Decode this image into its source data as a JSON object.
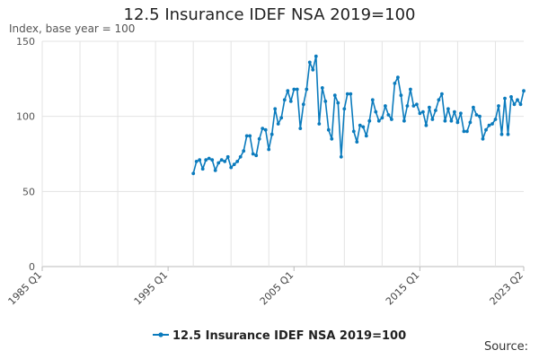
{
  "chart_data": {
    "type": "line",
    "title": "12.5 Insurance IDEF NSA 2019=100",
    "ylabel": "Index, base year = 100",
    "xlabel": "",
    "ylim": [
      0,
      150
    ],
    "y_ticks": [
      0,
      50,
      100,
      150
    ],
    "x_range": [
      1985.0,
      2023.25
    ],
    "x_ticks": [
      {
        "value": 1985.0,
        "label": "1985 Q1"
      },
      {
        "value": 1995.0,
        "label": "1995 Q1"
      },
      {
        "value": 2005.0,
        "label": "2005 Q1"
      },
      {
        "value": 2015.0,
        "label": "2015 Q1"
      },
      {
        "value": 2023.25,
        "label": "2023 Q2"
      }
    ],
    "x_gridlines": [
      1985.0,
      1988.0,
      1991.0,
      1994.0,
      1997.0,
      2000.0,
      2003.0,
      2006.0,
      2009.0,
      2012.0,
      2015.0,
      2018.0,
      2021.0
    ],
    "legend": "bottom",
    "series": [
      {
        "name": "12.5 Insurance IDEF NSA 2019=100",
        "color": "#0b7bbd",
        "start": 1997.0,
        "step": 0.25,
        "values": [
          62,
          70,
          71,
          65,
          71,
          72,
          71,
          64,
          69,
          71,
          70,
          73,
          66,
          68,
          70,
          73,
          77,
          87,
          87,
          75,
          74,
          85,
          92,
          91,
          78,
          88,
          105,
          95,
          99,
          111,
          117,
          110,
          118,
          118,
          92,
          108,
          118,
          136,
          131,
          140,
          95,
          119,
          110,
          91,
          85,
          114,
          109,
          73,
          105,
          115,
          115,
          90,
          83,
          94,
          93,
          87,
          97,
          111,
          103,
          97,
          99,
          107,
          101,
          98,
          122,
          126,
          114,
          97,
          107,
          118,
          107,
          108,
          102,
          103,
          94,
          106,
          98,
          104,
          111,
          115,
          97,
          105,
          97,
          103,
          96,
          102,
          90,
          90,
          96,
          106,
          101,
          100,
          85,
          91,
          94,
          95,
          98,
          107,
          88,
          112,
          88,
          113,
          108,
          111,
          108,
          117
        ]
      }
    ]
  },
  "source_label": "Source:"
}
